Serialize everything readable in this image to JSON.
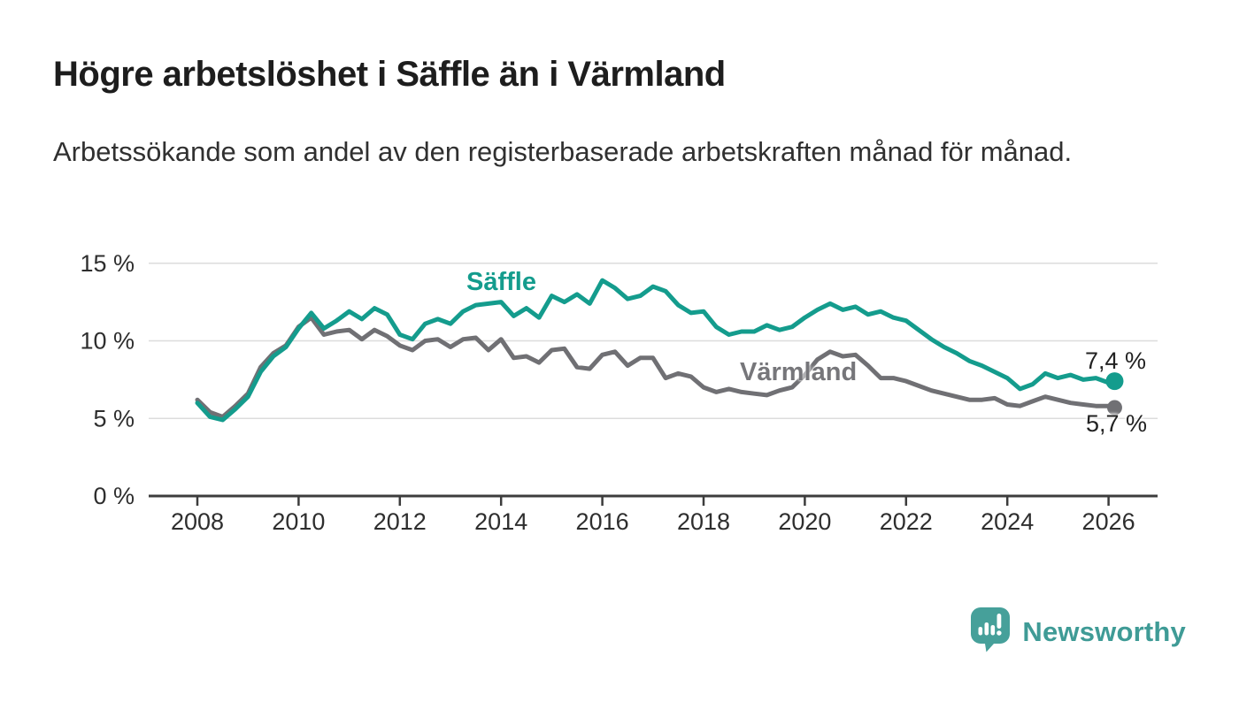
{
  "title": "Högre arbetslöshet i Säffle än i Värmland",
  "subtitle": "Arbetssökande som andel av den registerbaserade arbetskraften månad för månad.",
  "footer": {
    "brand": "Newsworthy",
    "logo_icon": "newsworthy-speech-bubble-bar-chart-icon",
    "brand_color": "#3f9b96"
  },
  "colors": {
    "saffle_line": "#149c8d",
    "varmland_line": "#707074",
    "grid": "#dcdcdc",
    "axis": "#3c3c3c",
    "label_text": "#222222"
  },
  "chart_data": {
    "type": "line",
    "title": "Högre arbetslöshet i Säffle än i Värmland",
    "subtitle": "Arbetssökande som andel av den registerbaserade arbetskraften månad för månad.",
    "x_unit": "decimal_year",
    "grid": "horizontal",
    "legend_position": "inline-labels",
    "xlim": [
      2007.0,
      2027.0
    ],
    "ylim": [
      0,
      15.7
    ],
    "xticks": [
      2008,
      2010,
      2012,
      2014,
      2016,
      2018,
      2020,
      2022,
      2024,
      2026
    ],
    "yticks": [
      {
        "value": 0,
        "label": "0 %"
      },
      {
        "value": 5,
        "label": "5 %"
      },
      {
        "value": 10,
        "label": "10 %"
      },
      {
        "value": 15,
        "label": "15 %"
      }
    ],
    "x": [
      2008.0,
      2008.25,
      2008.5,
      2008.75,
      2009.0,
      2009.25,
      2009.5,
      2009.75,
      2010.0,
      2010.25,
      2010.5,
      2010.75,
      2011.0,
      2011.25,
      2011.5,
      2011.75,
      2012.0,
      2012.25,
      2012.5,
      2012.75,
      2013.0,
      2013.25,
      2013.5,
      2013.75,
      2014.0,
      2014.25,
      2014.5,
      2014.75,
      2015.0,
      2015.25,
      2015.5,
      2015.75,
      2016.0,
      2016.25,
      2016.5,
      2016.75,
      2017.0,
      2017.25,
      2017.5,
      2017.75,
      2018.0,
      2018.25,
      2018.5,
      2018.75,
      2019.0,
      2019.25,
      2019.5,
      2019.75,
      2020.0,
      2020.25,
      2020.5,
      2020.75,
      2021.0,
      2021.25,
      2021.5,
      2021.75,
      2022.0,
      2022.25,
      2022.5,
      2022.75,
      2023.0,
      2023.25,
      2023.5,
      2023.75,
      2024.0,
      2024.25,
      2024.5,
      2024.75,
      2025.0,
      2025.25,
      2025.5,
      2025.75,
      2026.0,
      2026.12
    ],
    "series": [
      {
        "name": "Säffle",
        "color": "#149c8d",
        "end_label": "7,4 %",
        "end_value": 7.4,
        "values": [
          6.0,
          5.1,
          4.9,
          5.6,
          6.4,
          8.0,
          9.0,
          9.6,
          10.8,
          11.8,
          10.8,
          11.3,
          11.9,
          11.4,
          12.1,
          11.7,
          10.4,
          10.1,
          11.1,
          11.4,
          11.1,
          11.9,
          12.3,
          12.4,
          12.5,
          11.6,
          12.1,
          11.5,
          12.9,
          12.5,
          13.0,
          12.4,
          13.9,
          13.4,
          12.7,
          12.9,
          13.5,
          13.2,
          12.3,
          11.8,
          11.9,
          10.9,
          10.4,
          10.6,
          10.6,
          11.0,
          10.7,
          10.9,
          11.5,
          12.0,
          12.4,
          12.0,
          12.2,
          11.7,
          11.9,
          11.5,
          11.3,
          10.7,
          10.1,
          9.6,
          9.2,
          8.7,
          8.4,
          8.0,
          7.6,
          6.9,
          7.2,
          7.9,
          7.6,
          7.8,
          7.5,
          7.6,
          7.3,
          7.4
        ]
      },
      {
        "name": "Värmland",
        "color": "#707074",
        "end_label": "5,7 %",
        "end_value": 5.7,
        "values": [
          6.2,
          5.4,
          5.1,
          5.8,
          6.6,
          8.3,
          9.2,
          9.7,
          10.9,
          11.5,
          10.4,
          10.6,
          10.7,
          10.1,
          10.7,
          10.3,
          9.7,
          9.4,
          10.0,
          10.1,
          9.6,
          10.1,
          10.2,
          9.4,
          10.1,
          8.9,
          9.0,
          8.6,
          9.4,
          9.5,
          8.3,
          8.2,
          9.1,
          9.3,
          8.4,
          8.9,
          8.9,
          7.6,
          7.9,
          7.7,
          7.0,
          6.7,
          6.9,
          6.7,
          6.6,
          6.5,
          6.8,
          7.0,
          7.8,
          8.8,
          9.3,
          9.0,
          9.1,
          8.4,
          7.6,
          7.6,
          7.4,
          7.1,
          6.8,
          6.6,
          6.4,
          6.2,
          6.2,
          6.3,
          5.9,
          5.8,
          6.1,
          6.4,
          6.2,
          6.0,
          5.9,
          5.8,
          5.8,
          5.7
        ]
      }
    ]
  }
}
